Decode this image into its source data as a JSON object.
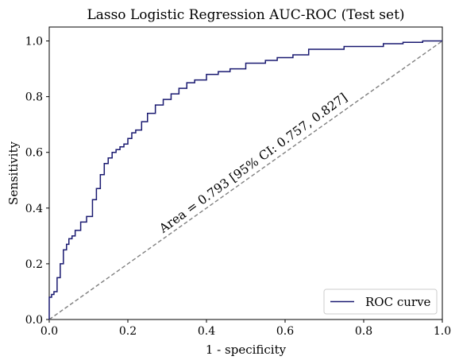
{
  "chart_data": {
    "type": "line",
    "title": "Lasso Logistic Regression AUC-ROC (Test set)",
    "xlabel": "1 - specificity",
    "ylabel": "Sensitivity",
    "xlim": [
      0,
      1
    ],
    "ylim": [
      0,
      1.05
    ],
    "xticks": [
      0.0,
      0.2,
      0.4,
      0.6,
      0.8,
      1.0
    ],
    "yticks": [
      0.0,
      0.2,
      0.4,
      0.6,
      0.8,
      1.0
    ],
    "xtick_labels": [
      "0.0",
      "0.2",
      "0.4",
      "0.6",
      "0.8",
      "1.0"
    ],
    "ytick_labels": [
      "0.0",
      "0.2",
      "0.4",
      "0.6",
      "0.8",
      "1.0"
    ],
    "grid": false,
    "annotation": "Area = 0.793 [95% CI: 0.757, 0.827]",
    "legend": {
      "placement": "lower-right",
      "entries": [
        "ROC curve"
      ]
    },
    "series": [
      {
        "name": "ROC curve",
        "color": "#191970",
        "x": [
          0.0,
          0.0,
          0.006,
          0.006,
          0.012,
          0.012,
          0.02,
          0.02,
          0.028,
          0.028,
          0.036,
          0.036,
          0.044,
          0.044,
          0.05,
          0.05,
          0.058,
          0.058,
          0.066,
          0.066,
          0.08,
          0.08,
          0.095,
          0.095,
          0.11,
          0.11,
          0.12,
          0.12,
          0.13,
          0.13,
          0.14,
          0.14,
          0.15,
          0.15,
          0.16,
          0.16,
          0.17,
          0.17,
          0.18,
          0.18,
          0.19,
          0.19,
          0.2,
          0.2,
          0.21,
          0.21,
          0.22,
          0.22,
          0.235,
          0.235,
          0.25,
          0.25,
          0.27,
          0.27,
          0.29,
          0.29,
          0.31,
          0.31,
          0.33,
          0.33,
          0.35,
          0.35,
          0.37,
          0.37,
          0.4,
          0.4,
          0.43,
          0.43,
          0.46,
          0.46,
          0.5,
          0.5,
          0.55,
          0.55,
          0.58,
          0.58,
          0.62,
          0.62,
          0.66,
          0.66,
          0.75,
          0.75,
          0.85,
          0.85,
          0.9,
          0.9,
          0.95,
          0.95,
          1.0
        ],
        "y": [
          0.0,
          0.08,
          0.08,
          0.09,
          0.09,
          0.1,
          0.1,
          0.15,
          0.15,
          0.2,
          0.2,
          0.25,
          0.25,
          0.27,
          0.27,
          0.29,
          0.29,
          0.3,
          0.3,
          0.32,
          0.32,
          0.35,
          0.35,
          0.37,
          0.37,
          0.43,
          0.43,
          0.47,
          0.47,
          0.52,
          0.52,
          0.56,
          0.56,
          0.58,
          0.58,
          0.6,
          0.6,
          0.61,
          0.61,
          0.62,
          0.62,
          0.63,
          0.63,
          0.65,
          0.65,
          0.67,
          0.67,
          0.68,
          0.68,
          0.71,
          0.71,
          0.74,
          0.74,
          0.77,
          0.77,
          0.79,
          0.79,
          0.81,
          0.81,
          0.83,
          0.83,
          0.85,
          0.85,
          0.86,
          0.86,
          0.88,
          0.88,
          0.89,
          0.89,
          0.9,
          0.9,
          0.92,
          0.92,
          0.93,
          0.93,
          0.94,
          0.94,
          0.95,
          0.95,
          0.97,
          0.97,
          0.98,
          0.98,
          0.99,
          0.99,
          0.995,
          0.995,
          1.0,
          1.0
        ]
      },
      {
        "x": [
          0,
          1
        ],
        "y": [
          0,
          1
        ],
        "color": "#808080",
        "dash": "dashed"
      }
    ]
  }
}
